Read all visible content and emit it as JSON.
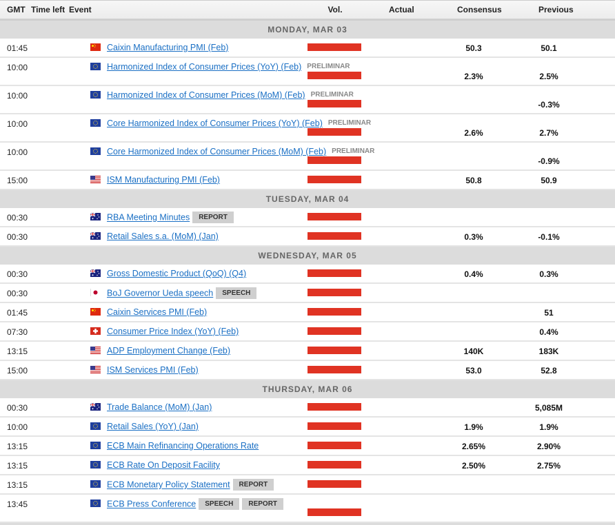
{
  "header": {
    "gmt": "GMT",
    "time_left": "Time left",
    "event": "Event",
    "vol": "Vol.",
    "actual": "Actual",
    "consensus": "Consensus",
    "previous": "Previous"
  },
  "colors": {
    "volatility_high": "#e03323",
    "link": "#1a6fc4",
    "day_bg": "#dcdcdc"
  },
  "days": [
    {
      "label": "MONDAY, MAR 03",
      "events": [
        {
          "time": "01:45",
          "flag": "china-flag-icon",
          "name": "Caixin Manufacturing PMI (Feb)",
          "tags": [],
          "prelim": "",
          "actual": "",
          "consensus": "50.3",
          "previous": "50.1",
          "tall": false
        },
        {
          "time": "10:00",
          "flag": "eu-flag-icon",
          "name": "Harmonized Index of Consumer Prices (YoY) (Feb)",
          "tags": [],
          "prelim": "PRELIMINAR",
          "actual": "",
          "consensus": "2.3%",
          "previous": "2.5%",
          "tall": true
        },
        {
          "time": "10:00",
          "flag": "eu-flag-icon",
          "name": "Harmonized Index of Consumer Prices (MoM) (Feb)",
          "tags": [],
          "prelim": "PRELIMINAR",
          "actual": "",
          "consensus": "",
          "previous": "-0.3%",
          "tall": true
        },
        {
          "time": "10:00",
          "flag": "eu-flag-icon",
          "name": "Core Harmonized Index of Consumer Prices (YoY) (Feb)",
          "tags": [],
          "prelim": "PRELIMINAR",
          "actual": "",
          "consensus": "2.6%",
          "previous": "2.7%",
          "tall": true
        },
        {
          "time": "10:00",
          "flag": "eu-flag-icon",
          "name": "Core Harmonized Index of Consumer Prices (MoM) (Feb)",
          "tags": [],
          "prelim": "PRELIMINAR",
          "actual": "",
          "consensus": "",
          "previous": "-0.9%",
          "tall": true
        },
        {
          "time": "15:00",
          "flag": "us-flag-icon",
          "name": "ISM Manufacturing PMI (Feb)",
          "tags": [],
          "prelim": "",
          "actual": "",
          "consensus": "50.8",
          "previous": "50.9",
          "tall": false
        }
      ]
    },
    {
      "label": "TUESDAY, MAR 04",
      "events": [
        {
          "time": "00:30",
          "flag": "australia-flag-icon",
          "name": "RBA Meeting Minutes",
          "tags": [
            "REPORT"
          ],
          "prelim": "",
          "actual": "",
          "consensus": "",
          "previous": "",
          "tall": false
        },
        {
          "time": "00:30",
          "flag": "australia-flag-icon",
          "name": "Retail Sales s.a. (MoM) (Jan)",
          "tags": [],
          "prelim": "",
          "actual": "",
          "consensus": "0.3%",
          "previous": "-0.1%",
          "tall": false
        }
      ]
    },
    {
      "label": "WEDNESDAY, MAR 05",
      "events": [
        {
          "time": "00:30",
          "flag": "australia-flag-icon",
          "name": "Gross Domestic Product (QoQ) (Q4)",
          "tags": [],
          "prelim": "",
          "actual": "",
          "consensus": "0.4%",
          "previous": "0.3%",
          "tall": false
        },
        {
          "time": "00:30",
          "flag": "japan-flag-icon",
          "name": "BoJ Governor Ueda speech",
          "tags": [
            "SPEECH"
          ],
          "prelim": "",
          "actual": "",
          "consensus": "",
          "previous": "",
          "tall": false
        },
        {
          "time": "01:45",
          "flag": "china-flag-icon",
          "name": "Caixin Services PMI (Feb)",
          "tags": [],
          "prelim": "",
          "actual": "",
          "consensus": "",
          "previous": "51",
          "tall": false
        },
        {
          "time": "07:30",
          "flag": "switzerland-flag-icon",
          "name": "Consumer Price Index (YoY) (Feb)",
          "tags": [],
          "prelim": "",
          "actual": "",
          "consensus": "",
          "previous": "0.4%",
          "tall": false
        },
        {
          "time": "13:15",
          "flag": "us-flag-icon",
          "name": "ADP Employment Change (Feb)",
          "tags": [],
          "prelim": "",
          "actual": "",
          "consensus": "140K",
          "previous": "183K",
          "tall": false
        },
        {
          "time": "15:00",
          "flag": "us-flag-icon",
          "name": "ISM Services PMI (Feb)",
          "tags": [],
          "prelim": "",
          "actual": "",
          "consensus": "53.0",
          "previous": "52.8",
          "tall": false
        }
      ]
    },
    {
      "label": "THURSDAY, MAR 06",
      "events": [
        {
          "time": "00:30",
          "flag": "australia-flag-icon",
          "name": "Trade Balance (MoM) (Jan)",
          "tags": [],
          "prelim": "",
          "actual": "",
          "consensus": "",
          "previous": "5,085M",
          "tall": false
        },
        {
          "time": "10:00",
          "flag": "eu-flag-icon",
          "name": "Retail Sales (YoY) (Jan)",
          "tags": [],
          "prelim": "",
          "actual": "",
          "consensus": "1.9%",
          "previous": "1.9%",
          "tall": false
        },
        {
          "time": "13:15",
          "flag": "eu-flag-icon",
          "name": "ECB Main Refinancing Operations Rate",
          "tags": [],
          "prelim": "",
          "actual": "",
          "consensus": "2.65%",
          "previous": "2.90%",
          "tall": false
        },
        {
          "time": "13:15",
          "flag": "eu-flag-icon",
          "name": "ECB Rate On Deposit Facility",
          "tags": [],
          "prelim": "",
          "actual": "",
          "consensus": "2.50%",
          "previous": "2.75%",
          "tall": false
        },
        {
          "time": "13:15",
          "flag": "eu-flag-icon",
          "name": "ECB Monetary Policy Statement",
          "tags": [
            "REPORT"
          ],
          "prelim": "",
          "actual": "",
          "consensus": "",
          "previous": "",
          "tall": false
        },
        {
          "time": "13:45",
          "flag": "eu-flag-icon",
          "name": "ECB Press Conference",
          "tags": [
            "SPEECH",
            "REPORT"
          ],
          "prelim": "",
          "actual": "",
          "consensus": "",
          "previous": "",
          "tall": true
        }
      ]
    }
  ]
}
